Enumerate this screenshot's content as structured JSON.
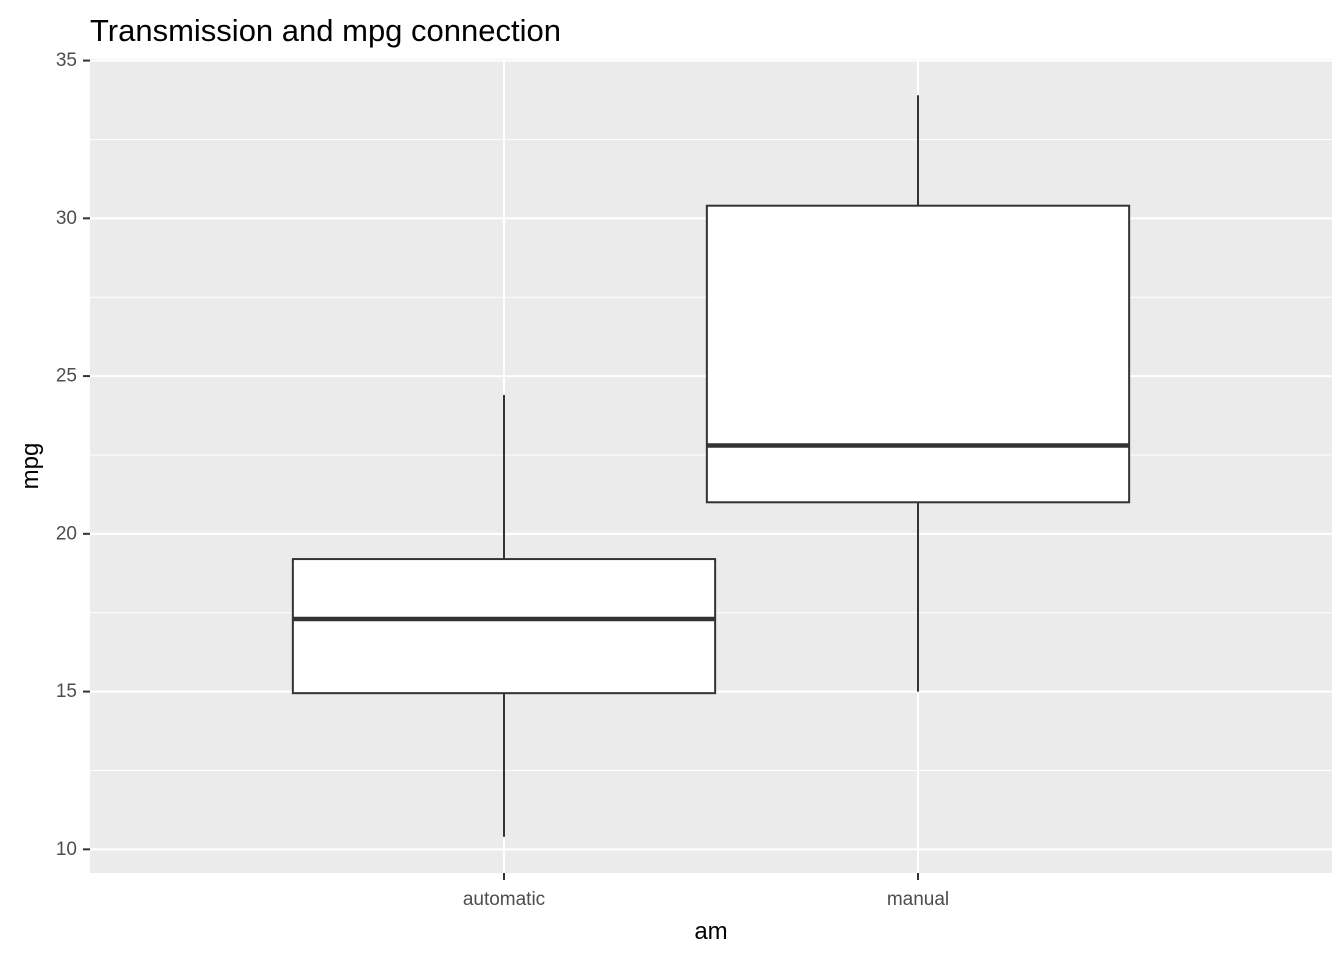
{
  "chart_data": {
    "type": "boxplot",
    "title": "Transmission and mpg connection",
    "xlabel": "am",
    "ylabel": "mpg",
    "categories": [
      "automatic",
      "manual"
    ],
    "boxes": [
      {
        "category": "automatic",
        "whisker_low": 10.4,
        "q1": 14.95,
        "median": 17.3,
        "q3": 19.2,
        "whisker_high": 24.4
      },
      {
        "category": "manual",
        "whisker_low": 15.0,
        "q1": 21.0,
        "median": 22.8,
        "q3": 30.4,
        "whisker_high": 33.9
      }
    ],
    "ylim": [
      9.25,
      35.05
    ],
    "yticks": [
      10,
      15,
      20,
      25,
      30,
      35
    ],
    "grid": true,
    "legend": "none",
    "colors": {
      "panel_background": "#ebebeb",
      "grid": "#ffffff",
      "box_fill": "#ffffff",
      "box_line": "#333333",
      "tick_mark": "#333333",
      "tick_label": "#4d4d4d"
    }
  }
}
